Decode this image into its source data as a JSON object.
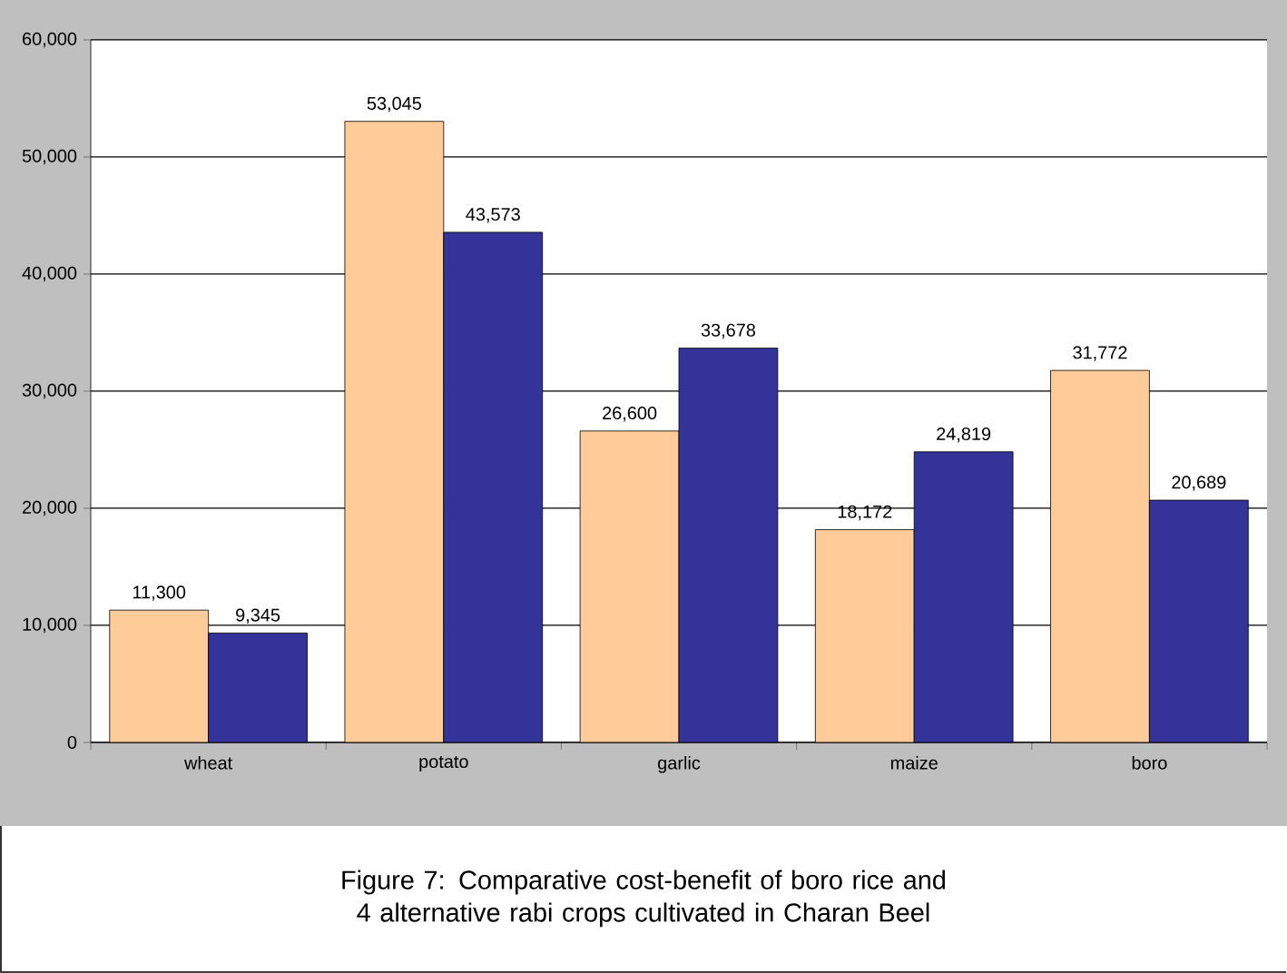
{
  "chart_data": {
    "type": "bar",
    "categories": [
      "wheat",
      "potato",
      "garlic",
      "maize",
      "boro"
    ],
    "series": [
      {
        "color": "#ffcc99",
        "values": [
          11300,
          53045,
          26600,
          18172,
          31772
        ],
        "value_labels": [
          "11,300",
          "53,045",
          "26,600",
          "18,172",
          "31,772"
        ]
      },
      {
        "color": "#333399",
        "values": [
          9345,
          43573,
          33678,
          24819,
          20689
        ],
        "value_labels": [
          "9,345",
          "43,573",
          "33,678",
          "24,819",
          "20,689"
        ]
      }
    ],
    "ylim": [
      0,
      60000
    ],
    "yticks": [
      0,
      {
        "value": 10000,
        "label": "10,000"
      },
      {
        "value": 20000,
        "label": "20,000"
      },
      {
        "value": 30000,
        "label": "30,000"
      },
      {
        "value": 40000,
        "label": "40,000"
      },
      {
        "value": 50000,
        "label": "50,000"
      },
      {
        "value": 60000,
        "label": "60,000"
      }
    ],
    "grid": "y",
    "annotations": [
      "Figure 7: Comparative cost-benefit of boro rice and 4 alternative rabi crops cultivated in Charan Beel"
    ]
  }
}
